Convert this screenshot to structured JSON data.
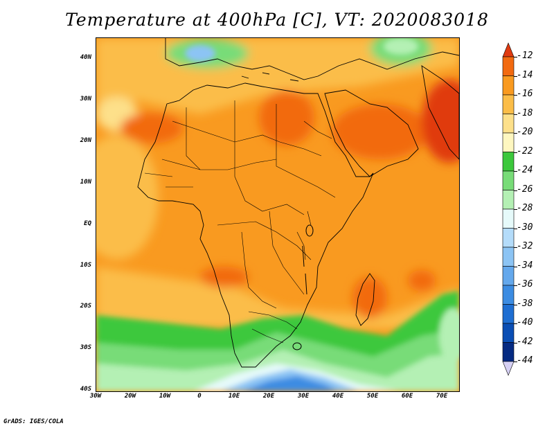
{
  "title": "Temperature at 400hPa [C], VT: 2020083018",
  "footer": "GrADS: IGES/COLA",
  "y_axis_labels": [
    "40N",
    "30N",
    "20N",
    "10N",
    "EQ",
    "10S",
    "20S",
    "30S",
    "40S"
  ],
  "x_axis_labels": [
    "30W",
    "20W",
    "10W",
    "0",
    "10E",
    "20E",
    "30E",
    "40E",
    "50E",
    "60E",
    "70E"
  ],
  "colorbar": {
    "labels": [
      "-12",
      "-14",
      "-16",
      "-18",
      "-20",
      "-22",
      "-24",
      "-26",
      "-28",
      "-30",
      "-32",
      "-34",
      "-36",
      "-38",
      "-40",
      "-42",
      "-44"
    ],
    "colors": [
      "#e03a10",
      "#f26a10",
      "#f99a20",
      "#fbbd48",
      "#fde08a",
      "#fef7c0",
      "#3cc83c",
      "#78dc78",
      "#b4f0b4",
      "#e6fafa",
      "#b4dcfa",
      "#8cc4f4",
      "#64a8ec",
      "#3c8ce2",
      "#1e6ed2",
      "#0a4eb4",
      "#052a82",
      "#d6d0f4"
    ]
  }
}
